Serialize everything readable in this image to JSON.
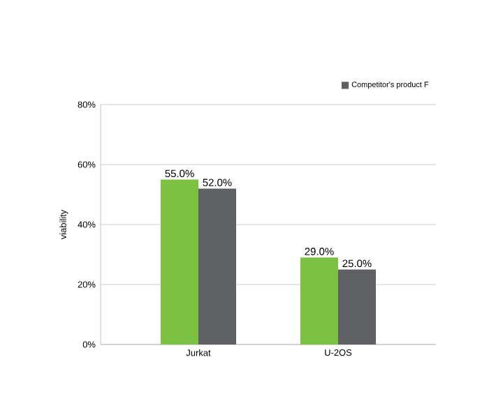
{
  "chart_data": {
    "type": "bar",
    "ylabel": "viability",
    "categories": [
      "Jurkat",
      "U-2OS"
    ],
    "series": [
      {
        "color": "#7dc142",
        "values": [
          55,
          29
        ],
        "value_labels": [
          "55.0%",
          "29.0%"
        ]
      },
      {
        "name": "Competitor's product F",
        "color": "#5f6064",
        "values": [
          52,
          25
        ],
        "value_labels": [
          "52.0%",
          "25.0%"
        ]
      }
    ],
    "ylim": [
      0,
      80
    ],
    "yticks": [
      {
        "value": 0,
        "label": "0%"
      },
      {
        "value": 20,
        "label": "20%"
      },
      {
        "value": 40,
        "label": "40%"
      },
      {
        "value": 60,
        "label": "60%"
      },
      {
        "value": 80,
        "label": "80%"
      }
    ],
    "grid": "y",
    "legend": "top right"
  }
}
